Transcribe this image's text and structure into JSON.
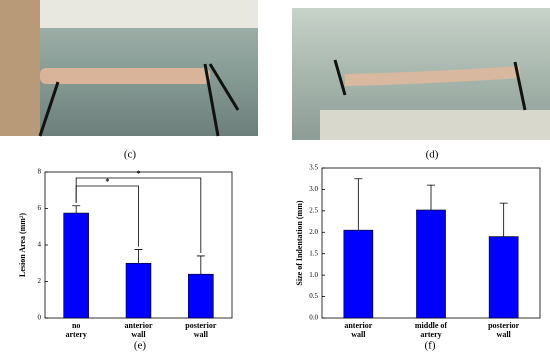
{
  "captions": [
    "(c)",
    "(d)",
    "(e)",
    "(f)"
  ],
  "chart_data": [
    {
      "type": "bar",
      "y_label": "Lesion Area (mm²)",
      "categories": [
        "no\nartery",
        "anterior\nwall",
        "posterior\nwall"
      ],
      "values": [
        5.75,
        3.0,
        2.4
      ],
      "errors": [
        0.4,
        0.75,
        1.0
      ],
      "color": "#0000ff",
      "ylim": [
        0,
        8
      ],
      "yticks": [
        0,
        2,
        4,
        6,
        8
      ],
      "annotations": [
        "*",
        "*"
      ]
    },
    {
      "type": "bar",
      "y_label": "Size of Indentation (mm)",
      "categories": [
        "anterior\nwall",
        "middle of\nartery",
        "posterior\nwall"
      ],
      "values": [
        2.05,
        2.52,
        1.9
      ],
      "errors": [
        1.2,
        0.58,
        0.78
      ],
      "color": "#0000ff",
      "ylim": [
        0,
        3.5
      ],
      "yticks": [
        {
          "value": 0,
          "label": "0.0"
        },
        {
          "value": 0.5,
          "label": "0.5"
        },
        {
          "value": 1,
          "label": "1.0"
        },
        {
          "value": 1.5,
          "label": "1.5"
        },
        {
          "value": 2,
          "label": "2.0"
        },
        {
          "value": 2.5,
          "label": "2.5"
        },
        {
          "value": 3,
          "label": "3.0"
        },
        {
          "value": 3.5,
          "label": "3.5"
        }
      ]
    }
  ]
}
